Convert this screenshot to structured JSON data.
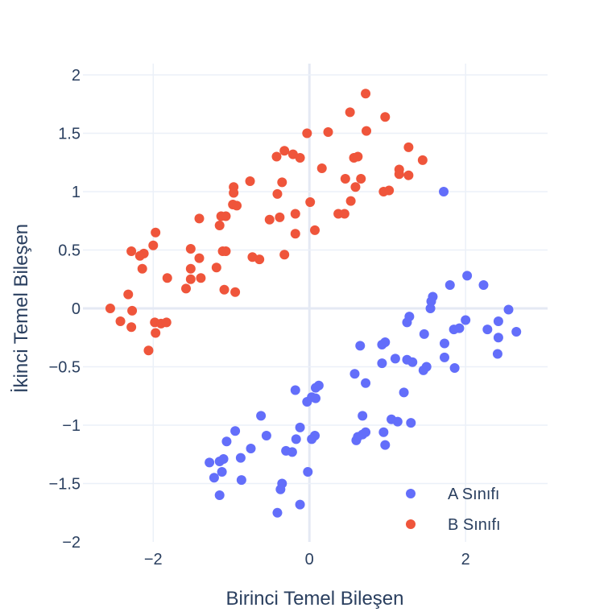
{
  "chart_data": {
    "type": "scatter",
    "title": "",
    "xlabel": "Birinci Temel Bileşen",
    "ylabel": "İkinci Temel Bileşen",
    "xlim": [
      -2.9,
      3.05
    ],
    "ylim": [
      -2.0,
      2.0
    ],
    "x_ticks": [
      -2,
      0,
      2
    ],
    "y_ticks": [
      -2,
      -1.5,
      -1,
      -0.5,
      0,
      0.5,
      1,
      1.5,
      2
    ],
    "x_tick_labels": [
      "−2",
      "0",
      "2"
    ],
    "y_tick_labels": [
      "−2",
      "−1.5",
      "−1",
      "−0.5",
      "0",
      "0.5",
      "1",
      "1.5",
      "2"
    ],
    "grid": true,
    "zero_line": true,
    "legend_position": "bottom-right",
    "series": [
      {
        "name": "A Sınıfı",
        "color": "#636efa",
        "points": [
          [
            1.72,
            1.0
          ],
          [
            2.02,
            0.28
          ],
          [
            2.23,
            0.2
          ],
          [
            1.8,
            0.2
          ],
          [
            1.58,
            0.1
          ],
          [
            1.56,
            0.06
          ],
          [
            1.55,
            0.0
          ],
          [
            2.55,
            -0.01
          ],
          [
            2.0,
            -0.1
          ],
          [
            1.28,
            -0.07
          ],
          [
            1.25,
            -0.12
          ],
          [
            2.42,
            -0.11
          ],
          [
            2.65,
            -0.2
          ],
          [
            1.92,
            -0.17
          ],
          [
            1.85,
            -0.18
          ],
          [
            2.28,
            -0.18
          ],
          [
            2.42,
            -0.25
          ],
          [
            1.47,
            -0.22
          ],
          [
            1.73,
            -0.3
          ],
          [
            0.97,
            -0.29
          ],
          [
            0.93,
            -0.31
          ],
          [
            0.65,
            -0.32
          ],
          [
            2.41,
            -0.39
          ],
          [
            1.73,
            -0.42
          ],
          [
            1.1,
            -0.43
          ],
          [
            1.25,
            -0.44
          ],
          [
            1.32,
            -0.46
          ],
          [
            0.93,
            -0.47
          ],
          [
            1.5,
            -0.5
          ],
          [
            1.86,
            -0.51
          ],
          [
            1.46,
            -0.53
          ],
          [
            0.58,
            -0.56
          ],
          [
            0.72,
            -0.64
          ],
          [
            0.12,
            -0.66
          ],
          [
            0.08,
            -0.68
          ],
          [
            -0.18,
            -0.7
          ],
          [
            1.21,
            -0.72
          ],
          [
            0.03,
            -0.76
          ],
          [
            0.08,
            -0.77
          ],
          [
            -0.03,
            -0.8
          ],
          [
            -0.62,
            -0.92
          ],
          [
            0.68,
            -0.92
          ],
          [
            1.05,
            -0.95
          ],
          [
            1.13,
            -0.97
          ],
          [
            1.3,
            -0.98
          ],
          [
            -0.12,
            -1.02
          ],
          [
            -0.95,
            -1.05
          ],
          [
            0.72,
            -1.06
          ],
          [
            0.95,
            -1.06
          ],
          [
            0.68,
            -1.08
          ],
          [
            -0.55,
            -1.09
          ],
          [
            0.07,
            -1.09
          ],
          [
            0.62,
            -1.1
          ],
          [
            0.03,
            -1.12
          ],
          [
            -0.17,
            -1.12
          ],
          [
            0.6,
            -1.13
          ],
          [
            -1.06,
            -1.14
          ],
          [
            0.97,
            -1.17
          ],
          [
            -0.75,
            -1.2
          ],
          [
            -0.3,
            -1.22
          ],
          [
            -0.22,
            -1.23
          ],
          [
            -0.88,
            -1.28
          ],
          [
            -1.1,
            -1.29
          ],
          [
            -1.15,
            -1.31
          ],
          [
            -1.28,
            -1.32
          ],
          [
            -1.12,
            -1.4
          ],
          [
            -0.02,
            -1.4
          ],
          [
            -1.22,
            -1.45
          ],
          [
            -0.87,
            -1.47
          ],
          [
            -0.35,
            -1.5
          ],
          [
            -0.37,
            -1.55
          ],
          [
            -1.15,
            -1.6
          ],
          [
            -0.12,
            -1.68
          ],
          [
            -0.41,
            -1.75
          ]
        ]
      },
      {
        "name": "B Sınıfı",
        "color": "#ef553b",
        "points": [
          [
            0.72,
            1.84
          ],
          [
            0.52,
            1.68
          ],
          [
            0.97,
            1.64
          ],
          [
            0.73,
            1.52
          ],
          [
            0.24,
            1.51
          ],
          [
            -0.03,
            1.5
          ],
          [
            1.27,
            1.38
          ],
          [
            -0.32,
            1.35
          ],
          [
            -0.21,
            1.32
          ],
          [
            -0.42,
            1.3
          ],
          [
            -0.12,
            1.29
          ],
          [
            0.57,
            1.29
          ],
          [
            0.62,
            1.3
          ],
          [
            1.45,
            1.27
          ],
          [
            0.16,
            1.2
          ],
          [
            1.15,
            1.19
          ],
          [
            1.15,
            1.15
          ],
          [
            1.27,
            1.14
          ],
          [
            0.46,
            1.11
          ],
          [
            0.66,
            1.11
          ],
          [
            -0.76,
            1.09
          ],
          [
            -0.35,
            1.08
          ],
          [
            -0.97,
            1.04
          ],
          [
            0.59,
            1.04
          ],
          [
            1.02,
            1.01
          ],
          [
            0.95,
            1.0
          ],
          [
            -0.97,
            0.99
          ],
          [
            -0.41,
            0.98
          ],
          [
            0.01,
            0.91
          ],
          [
            0.53,
            0.92
          ],
          [
            -0.98,
            0.89
          ],
          [
            -0.93,
            0.88
          ],
          [
            0.37,
            0.81
          ],
          [
            0.45,
            0.81
          ],
          [
            -0.18,
            0.81
          ],
          [
            -1.13,
            0.79
          ],
          [
            -1.07,
            0.79
          ],
          [
            -1.41,
            0.77
          ],
          [
            -0.38,
            0.78
          ],
          [
            -0.51,
            0.76
          ],
          [
            -1.15,
            0.71
          ],
          [
            0.07,
            0.67
          ],
          [
            -1.97,
            0.65
          ],
          [
            -0.18,
            0.64
          ],
          [
            -2.0,
            0.54
          ],
          [
            -1.52,
            0.51
          ],
          [
            -1.11,
            0.49
          ],
          [
            -1.07,
            0.49
          ],
          [
            -2.28,
            0.49
          ],
          [
            -2.12,
            0.47
          ],
          [
            -2.17,
            0.45
          ],
          [
            -0.32,
            0.46
          ],
          [
            -0.73,
            0.44
          ],
          [
            -0.64,
            0.42
          ],
          [
            -1.41,
            0.43
          ],
          [
            -1.52,
            0.34
          ],
          [
            -1.19,
            0.35
          ],
          [
            -2.14,
            0.34
          ],
          [
            -1.82,
            0.26
          ],
          [
            -1.52,
            0.25
          ],
          [
            -1.39,
            0.26
          ],
          [
            -1.58,
            0.17
          ],
          [
            -1.09,
            0.16
          ],
          [
            -0.95,
            0.14
          ],
          [
            -2.32,
            0.12
          ],
          [
            -2.55,
            0.0
          ],
          [
            -2.27,
            -0.02
          ],
          [
            -2.42,
            -0.11
          ],
          [
            -1.98,
            -0.12
          ],
          [
            -1.9,
            -0.13
          ],
          [
            -1.83,
            -0.12
          ],
          [
            -2.28,
            -0.16
          ],
          [
            -1.97,
            -0.21
          ],
          [
            -2.06,
            -0.36
          ]
        ]
      }
    ]
  }
}
